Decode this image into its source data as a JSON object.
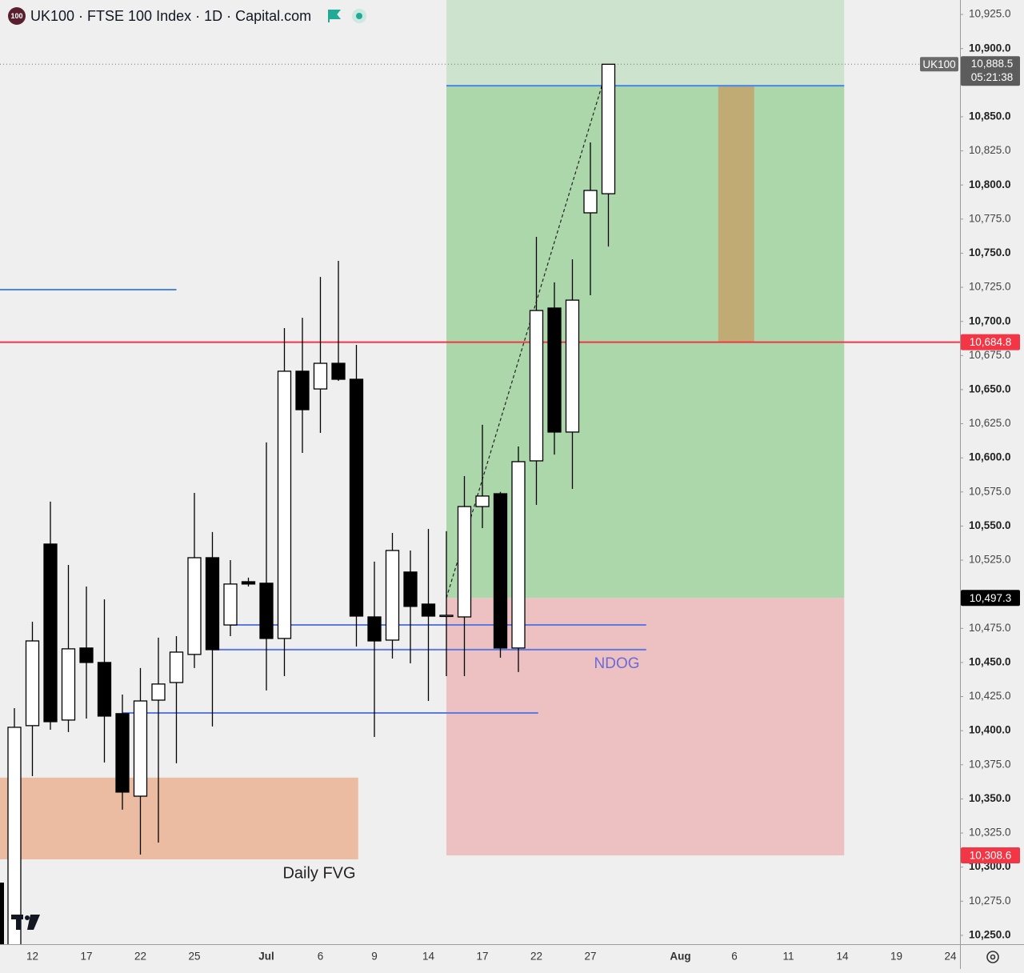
{
  "chart_data": {
    "type": "candlestick",
    "title": "UK100 · FTSE 100 Index · 1D · Capital.com",
    "badge": "100",
    "categories": [
      null,
      "12",
      null,
      null,
      "17",
      null,
      null,
      "22",
      null,
      null,
      "25",
      null,
      null,
      null,
      "Jul",
      null,
      null,
      "6",
      null,
      null,
      "9",
      null,
      null,
      "14",
      null,
      null,
      "17",
      null,
      null,
      "22",
      null,
      null,
      "27",
      null,
      null,
      null,
      null,
      "Aug",
      null,
      null,
      "6",
      null,
      null,
      "11",
      null,
      null,
      "14",
      null,
      null,
      "19",
      null,
      null,
      "24"
    ],
    "open": [
      10235,
      10403.7,
      10536.8,
      10407.8,
      10460.6,
      10450.0,
      10412.5,
      10352.0,
      10422.4,
      10435.3,
      10455.9,
      10526.8,
      10477.5,
      10509.2,
      10508.1,
      10467.6,
      10663.5,
      10650.5,
      10669.3,
      10657.6,
      10483.4,
      10466.4,
      10516.3,
      10492.8,
      10484.6,
      10483.4,
      10564.3,
      10573.7,
      10460.6,
      10597.8,
      10709.8,
      10618.9,
      10779.6,
      10793.6,
      null,
      null,
      null,
      null,
      null,
      null,
      null,
      null,
      null,
      null,
      null,
      null,
      null,
      null,
      null,
      null,
      null,
      null,
      null
    ],
    "high": [
      10416.5,
      10479.9,
      10567.9,
      10521.5,
      10505.7,
      10496.3,
      10426.5,
      10445.9,
      10468.2,
      10469.3,
      10574.3,
      10545.6,
      10525.0,
      10512.2,
      10611.3,
      10695.1,
      10702.7,
      10732.6,
      10744.4,
      10682.8,
      10523.9,
      10545.0,
      10532.1,
      10547.9,
      10546.2,
      10586.6,
      10624.2,
      10575.0,
      10608.3,
      10762.0,
      10728.6,
      10745.6,
      10831.2,
      10888.5,
      null,
      null,
      null,
      null,
      null,
      null,
      null,
      null,
      null,
      null,
      null,
      null,
      null,
      null,
      null,
      null,
      null,
      null,
      null
    ],
    "low": [
      10220,
      10366.7,
      10400.7,
      10399.0,
      10408.9,
      10376.7,
      10342.1,
      10309.2,
      10318.0,
      10376.1,
      10445.9,
      10403.1,
      10469.3,
      10505.7,
      10429.5,
      10440.0,
      10603.6,
      10618.3,
      10656.4,
      10461.7,
      10395.4,
      10452.9,
      10449.4,
      10421.8,
      10440.0,
      10440.0,
      10548.5,
      10453.5,
      10443.0,
      10565.5,
      10602.4,
      10577.2,
      10719.2,
      10754.9,
      null,
      null,
      null,
      null,
      null,
      null,
      null,
      null,
      null,
      null,
      null,
      null,
      null,
      null,
      null,
      null,
      null,
      null,
      null
    ],
    "close": [
      10402.5,
      10465.8,
      10406.6,
      10460.0,
      10450.0,
      10410.7,
      10355.0,
      10421.8,
      10434.2,
      10457.6,
      10526.8,
      10459.4,
      10507.5,
      10507.5,
      10467.6,
      10663.5,
      10635.3,
      10669.3,
      10657.6,
      10484.0,
      10465.8,
      10532.1,
      10491.1,
      10484.0,
      10484.6,
      10564.3,
      10572.0,
      10460.6,
      10597.2,
      10708.0,
      10618.9,
      10715.6,
      10796.0,
      10888.5,
      null,
      null,
      null,
      null,
      null,
      null,
      null,
      null,
      null,
      null,
      null,
      null,
      null,
      null,
      null,
      null,
      null,
      null,
      null
    ],
    "up_color": "#ffffff",
    "down_color": "#000000",
    "ylim": [
      10243.5,
      10935.6
    ],
    "yticks": [
      {
        "value": 10250,
        "label": "10,250.0"
      },
      {
        "value": 10275,
        "label": "10,275.0"
      },
      {
        "value": 10300,
        "label": "10,300.0"
      },
      {
        "value": 10325,
        "label": "10,325.0"
      },
      {
        "value": 10350,
        "label": "10,350.0"
      },
      {
        "value": 10375,
        "label": "10,375.0"
      },
      {
        "value": 10400,
        "label": "10,400.0"
      },
      {
        "value": 10425,
        "label": "10,425.0"
      },
      {
        "value": 10450,
        "label": "10,450.0"
      },
      {
        "value": 10475,
        "label": "10,475.0"
      },
      {
        "value": 10525,
        "label": "10,525.0"
      },
      {
        "value": 10550,
        "label": "10,550.0"
      },
      {
        "value": 10575,
        "label": "10,575.0"
      },
      {
        "value": 10600,
        "label": "10,600.0"
      },
      {
        "value": 10625,
        "label": "10,625.0"
      },
      {
        "value": 10650,
        "label": "10,650.0"
      },
      {
        "value": 10675,
        "label": "10,675.0"
      },
      {
        "value": 10700,
        "label": "10,700.0"
      },
      {
        "value": 10725,
        "label": "10,725.0"
      },
      {
        "value": 10750,
        "label": "10,750.0"
      },
      {
        "value": 10775,
        "label": "10,775.0"
      },
      {
        "value": 10800,
        "label": "10,800.0"
      },
      {
        "value": 10825,
        "label": "10,825.0"
      },
      {
        "value": 10850,
        "label": "10,850.0"
      },
      {
        "value": 10900,
        "label": "10,900.0"
      },
      {
        "value": 10925,
        "label": "10,925.0"
      }
    ],
    "grid": false,
    "zones": [
      {
        "from": 24,
        "to": 46.1,
        "low": 10872.8,
        "high": 10935.6,
        "color": "#cde3cd"
      },
      {
        "from": 24,
        "to": 46.1,
        "low": 10497.3,
        "high": 10872.8,
        "color": "#acd7ab"
      },
      {
        "from": 24,
        "to": 46.1,
        "low": 10308.6,
        "high": 10497.3,
        "color": "#edc0c2"
      },
      {
        "from": -0.8,
        "to": 19.1,
        "low": 10305.7,
        "high": 10365.6,
        "color": "#ebbca2"
      },
      {
        "from": 39.1,
        "to": 41.1,
        "low": 10684.8,
        "high": 10872.8,
        "color": "#c0ab74"
      }
    ],
    "levels": [
      {
        "from": 24,
        "to": 46.1,
        "value": 10872.8,
        "color": "#4a86e8"
      },
      {
        "from": -0.8,
        "to": 9,
        "value": 10723.3,
        "color": "#4a86e8"
      },
      {
        "from": 12,
        "to": 35.1,
        "value": 10477.5,
        "color": "#5b7be0"
      },
      {
        "from": 11,
        "to": 35.1,
        "value": 10459.4,
        "color": "#5b7be0"
      },
      {
        "from": 6,
        "to": 29.1,
        "value": 10413.0,
        "color": "#5b7be0"
      },
      {
        "from": -0.8,
        "to": 52.6,
        "value": 10684.8,
        "color": "#f23645"
      }
    ],
    "trend": {
      "from": 24,
      "to": 33,
      "start": 10497.3,
      "end": 10888.5
    },
    "last_price": {
      "symbol": "UK100",
      "value": 10888.5,
      "label": "10,888.5",
      "countdown": "05:21:38"
    },
    "price_labels": [
      {
        "value": 10684.8,
        "label": "10,684.8",
        "color": "#f23645"
      },
      {
        "value": 10497.3,
        "label": "10,497.3",
        "color": "#000000"
      },
      {
        "value": 10308.6,
        "label": "10,308.6",
        "color": "#f23645"
      }
    ],
    "annotations": [
      "NDOG",
      "Daily FVG"
    ]
  }
}
